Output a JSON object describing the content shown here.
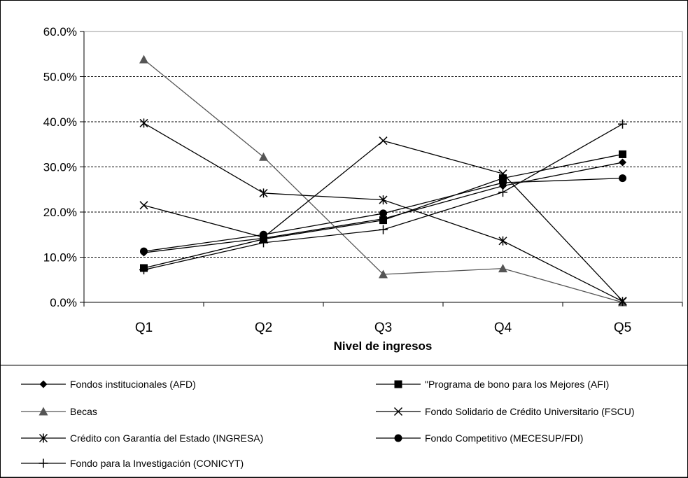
{
  "chart_data": {
    "type": "line",
    "xlabel": "Nivel de ingresos",
    "ylabel": "",
    "ylim": [
      0,
      0.6
    ],
    "yticks": [
      "0.0%",
      "10.0%",
      "20.0%",
      "30.0%",
      "40.0%",
      "50.0%",
      "60.0%"
    ],
    "categories": [
      "Q1",
      "Q2",
      "Q3",
      "Q4",
      "Q5"
    ],
    "grid": "horizontal dashed",
    "legend_position": "bottom",
    "series": [
      {
        "name": "Fondos institucionales (AFD)",
        "marker": "diamond",
        "color": "#000000",
        "values": [
          0.11,
          0.142,
          0.185,
          0.258,
          0.31
        ]
      },
      {
        "name": "\"Programa de bono para los Mejores (AFI)",
        "marker": "square",
        "color": "#000000",
        "values": [
          0.076,
          0.14,
          0.182,
          0.275,
          0.328
        ]
      },
      {
        "name": "Becas",
        "marker": "triangle",
        "color": "#555555",
        "values": [
          0.538,
          0.322,
          0.062,
          0.075,
          0.0
        ]
      },
      {
        "name": "Fondo Solidario de Crédito Universitario (FSCU)",
        "marker": "x",
        "color": "#000000",
        "values": [
          0.215,
          0.144,
          0.358,
          0.285,
          0.003
        ]
      },
      {
        "name": "Crédito con Garantía del Estado (INGRESA)",
        "marker": "asterisk",
        "color": "#000000",
        "values": [
          0.397,
          0.242,
          0.227,
          0.136,
          0.002
        ]
      },
      {
        "name": "Fondo Competitivo (MECESUP/FDI)",
        "marker": "circle",
        "color": "#000000",
        "values": [
          0.113,
          0.15,
          0.197,
          0.265,
          0.275
        ]
      },
      {
        "name": "Fondo para la Investigación (CONICYT)",
        "marker": "plus",
        "color": "#000000",
        "values": [
          0.072,
          0.132,
          0.161,
          0.244,
          0.395
        ]
      }
    ]
  }
}
